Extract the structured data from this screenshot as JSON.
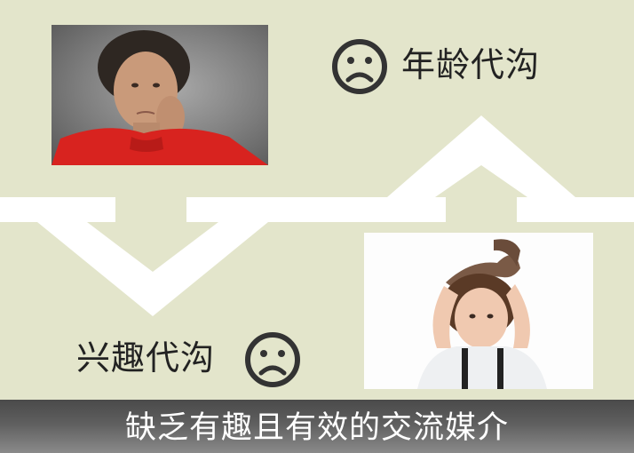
{
  "slide": {
    "top_label": "年龄代沟",
    "bottom_label": "兴趣代沟",
    "footer_caption": "缺乏有趣且有效的交流媒介"
  },
  "icons": {
    "top_face": "sad-face-icon",
    "bottom_face": "sad-face-icon",
    "down_arrow": "down-arrow-icon",
    "up_arrow": "up-arrow-icon"
  },
  "colors": {
    "background": "#e3e5cb",
    "band": "#ffffff",
    "footer_dark": "#4a4a4a",
    "footer_light": "#7a7a7a",
    "face_stroke": "#333333",
    "label_text": "#222222"
  }
}
